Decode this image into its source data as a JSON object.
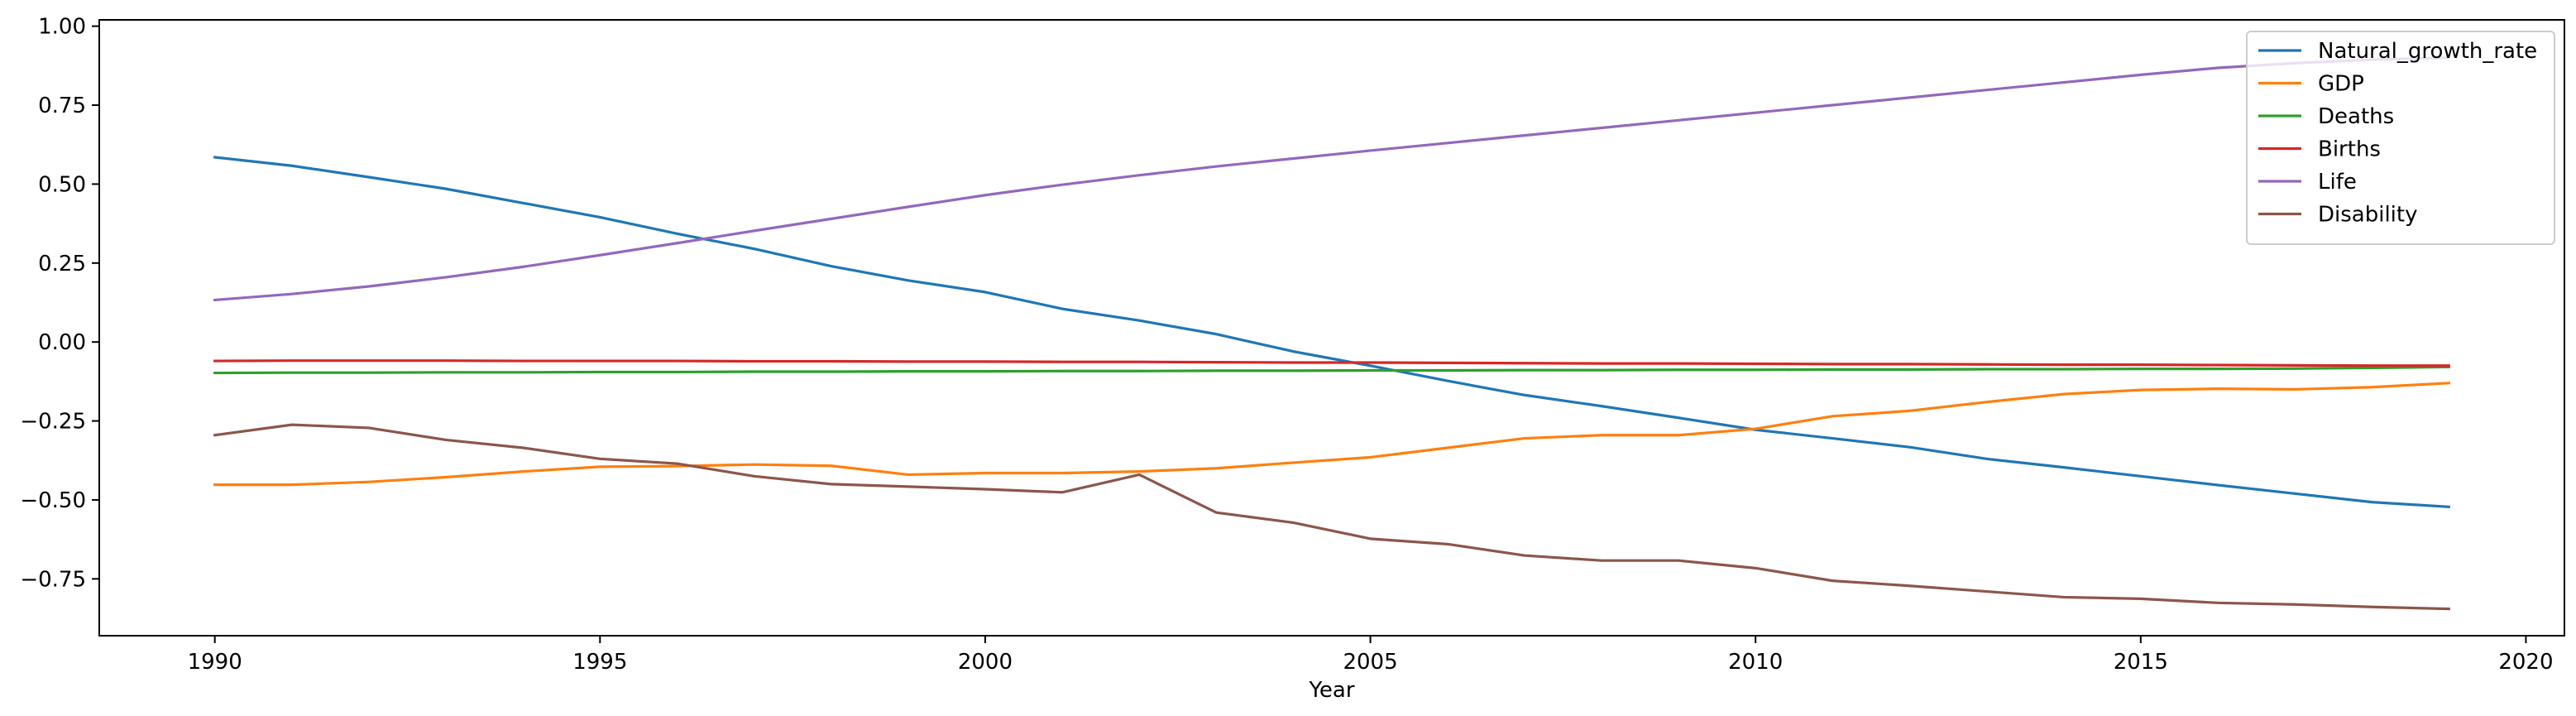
{
  "chart_data": {
    "type": "line",
    "title": "",
    "xlabel": "Year",
    "ylabel": "",
    "xlim": [
      1988.5,
      2020.5
    ],
    "ylim": [
      -0.93,
      1.02
    ],
    "xticks": [
      "1990",
      "1995",
      "2000",
      "2005",
      "2010",
      "2015",
      "2020"
    ],
    "yticks": [
      "1.00",
      "0.75",
      "0.50",
      "0.25",
      "0.00",
      "−0.25",
      "−0.50",
      "−0.75"
    ],
    "grid": false,
    "legend_position": "top-right",
    "x": [
      1990,
      1991,
      1992,
      1993,
      1994,
      1995,
      1996,
      1997,
      1998,
      1999,
      2000,
      2001,
      2002,
      2003,
      2004,
      2005,
      2006,
      2007,
      2008,
      2009,
      2010,
      2011,
      2012,
      2013,
      2014,
      2015,
      2016,
      2017,
      2018,
      2019
    ],
    "series": [
      {
        "name": "Natural_growth_rate",
        "color": "#1f77b4",
        "values": [
          0.585,
          0.558,
          0.522,
          0.485,
          0.44,
          0.395,
          0.343,
          0.295,
          0.24,
          0.195,
          0.158,
          0.105,
          0.068,
          0.025,
          -0.03,
          -0.075,
          -0.123,
          -0.168,
          -0.203,
          -0.24,
          -0.278,
          -0.305,
          -0.333,
          -0.37,
          -0.397,
          -0.425,
          -0.453,
          -0.48,
          -0.507,
          -0.522
        ]
      },
      {
        "name": "GDP",
        "color": "#ff7f0e",
        "values": [
          -0.452,
          -0.452,
          -0.443,
          -0.428,
          -0.41,
          -0.395,
          -0.393,
          -0.388,
          -0.392,
          -0.42,
          -0.415,
          -0.415,
          -0.41,
          -0.4,
          -0.382,
          -0.365,
          -0.335,
          -0.305,
          -0.295,
          -0.295,
          -0.275,
          -0.235,
          -0.218,
          -0.19,
          -0.165,
          -0.152,
          -0.148,
          -0.15,
          -0.143,
          -0.13
        ]
      },
      {
        "name": "Deaths",
        "color": "#2ca02c",
        "values": [
          -0.098,
          -0.097,
          -0.097,
          -0.096,
          -0.096,
          -0.095,
          -0.095,
          -0.094,
          -0.094,
          -0.093,
          -0.093,
          -0.092,
          -0.092,
          -0.091,
          -0.091,
          -0.09,
          -0.09,
          -0.089,
          -0.089,
          -0.088,
          -0.088,
          -0.087,
          -0.087,
          -0.086,
          -0.086,
          -0.085,
          -0.085,
          -0.084,
          -0.082,
          -0.079
        ]
      },
      {
        "name": "Births",
        "color": "#d62728",
        "values": [
          -0.06,
          -0.059,
          -0.059,
          -0.059,
          -0.06,
          -0.06,
          -0.06,
          -0.061,
          -0.061,
          -0.062,
          -0.062,
          -0.063,
          -0.063,
          -0.064,
          -0.065,
          -0.065,
          -0.066,
          -0.067,
          -0.068,
          -0.068,
          -0.069,
          -0.07,
          -0.07,
          -0.071,
          -0.072,
          -0.072,
          -0.073,
          -0.074,
          -0.075,
          -0.075
        ]
      },
      {
        "name": "Life",
        "color": "#9467bd",
        "values": [
          0.133,
          0.152,
          0.176,
          0.205,
          0.238,
          0.275,
          0.313,
          0.352,
          0.39,
          0.428,
          0.465,
          0.498,
          0.528,
          0.556,
          0.581,
          0.606,
          0.63,
          0.654,
          0.678,
          0.702,
          0.726,
          0.75,
          0.774,
          0.798,
          0.822,
          0.846,
          0.868,
          0.883,
          0.894,
          0.9
        ]
      },
      {
        "name": "Disability",
        "color": "#8c564b",
        "values": [
          -0.295,
          -0.262,
          -0.272,
          -0.31,
          -0.335,
          -0.37,
          -0.385,
          -0.425,
          -0.45,
          -0.458,
          -0.466,
          -0.476,
          -0.42,
          -0.54,
          -0.572,
          -0.623,
          -0.64,
          -0.676,
          -0.692,
          -0.692,
          -0.716,
          -0.756,
          -0.772,
          -0.79,
          -0.808,
          -0.813,
          -0.826,
          -0.831,
          -0.839,
          -0.845
        ]
      }
    ]
  }
}
